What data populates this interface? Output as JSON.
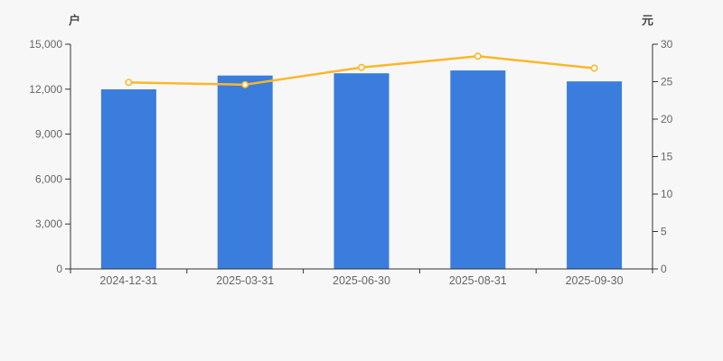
{
  "page": {
    "background": "#f7f7f7"
  },
  "chart_data": {
    "type": "bar",
    "subtype": "bar-line-dual-axis",
    "categories": [
      "2024-12-31",
      "2025-03-31",
      "2025-06-30",
      "2025-08-31",
      "2025-09-30"
    ],
    "series": [
      {
        "name": "bar-series",
        "type": "bar",
        "axis": "left",
        "color": "#3a7ddd",
        "values": [
          11990,
          12910,
          13060,
          13250,
          12520
        ]
      },
      {
        "name": "line-series",
        "type": "line",
        "axis": "right",
        "color": "#fcb728",
        "marker": "hollow-circle",
        "values": [
          24.9,
          24.6,
          26.9,
          28.4,
          26.8
        ]
      }
    ],
    "left_axis": {
      "unit_label": "户",
      "min": 0,
      "max": 15000,
      "tick_step": 3000,
      "tick_labels": [
        "15,000",
        "12,000",
        "9,000",
        "6,000",
        "3,000",
        "0"
      ]
    },
    "right_axis": {
      "unit_label": "元",
      "min": 0,
      "max": 30,
      "tick_step": 5,
      "tick_labels": [
        "30",
        "25",
        "20",
        "15",
        "10",
        "5",
        "0"
      ]
    },
    "grid": false,
    "legend": "none",
    "axis_color": "#333333",
    "tick_text_color": "#666666"
  }
}
